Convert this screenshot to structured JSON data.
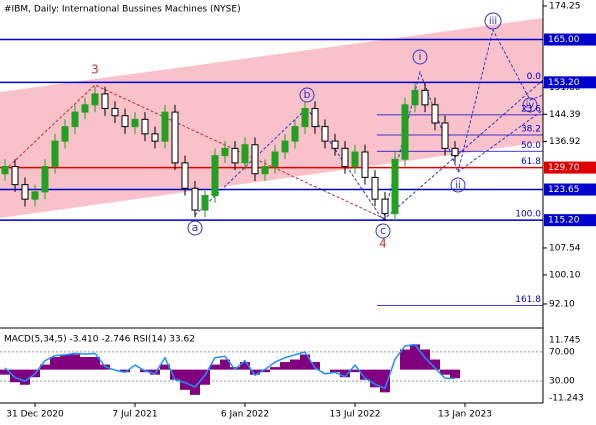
{
  "chart_data": {
    "type": "candlestick",
    "title": "#IBM, Daily:  International Bussines Machines (NYSE)",
    "categories": [
      null,
      null,
      null,
      "31 Dec 2020",
      null,
      null,
      null,
      null,
      null,
      null,
      null,
      null,
      null,
      "7 Jul 2021",
      null,
      null,
      null,
      null,
      null,
      null,
      null,
      null,
      null,
      null,
      "6 Jan 2022",
      null,
      null,
      null,
      null,
      null,
      null,
      null,
      null,
      null,
      null,
      "13 Jul 2022",
      null,
      null,
      null,
      null,
      null,
      null,
      null,
      null,
      null,
      null,
      "13 Jan 2023",
      null,
      null,
      null,
      null,
      null,
      null,
      null
    ],
    "open": [
      128,
      130,
      125,
      121,
      123,
      130,
      137,
      141,
      145,
      147,
      150,
      146,
      144,
      141,
      143,
      139,
      137,
      145,
      131,
      124,
      118,
      122,
      133,
      135,
      131,
      136,
      128,
      130,
      134,
      137,
      141,
      146,
      141,
      137,
      135,
      130,
      134,
      127,
      121,
      117,
      132,
      147,
      151,
      147,
      142,
      135,
      null,
      null,
      null,
      null,
      null,
      null,
      null,
      null
    ],
    "high": [
      132,
      132,
      127,
      125,
      132,
      139,
      143,
      147,
      149,
      152,
      152,
      148,
      146,
      145,
      145,
      141,
      147,
      147,
      133,
      126,
      124,
      135,
      137,
      137,
      138,
      138,
      132,
      136,
      139,
      143,
      148,
      148,
      143,
      139,
      137,
      136,
      136,
      129,
      123,
      134,
      149,
      153,
      153,
      149,
      144,
      137,
      null,
      null,
      null,
      null,
      null,
      null,
      null,
      null
    ],
    "low": [
      126,
      123,
      119,
      119,
      121,
      128,
      135,
      139,
      143,
      145,
      144,
      142,
      139,
      139,
      137,
      135,
      135,
      129,
      122,
      116,
      116,
      120,
      131,
      129,
      129,
      126,
      126,
      128,
      132,
      135,
      139,
      139,
      135,
      133,
      128,
      128,
      125,
      119,
      115,
      115,
      130,
      145,
      145,
      140,
      133,
      131,
      null,
      null,
      null,
      null,
      null,
      null,
      null,
      null
    ],
    "close": [
      130,
      125,
      121,
      123,
      130,
      137,
      141,
      145,
      147,
      150,
      146,
      144,
      141,
      143,
      139,
      137,
      145,
      131,
      124,
      118,
      122,
      133,
      135,
      131,
      136,
      128,
      130,
      134,
      137,
      141,
      146,
      141,
      137,
      135,
      130,
      134,
      127,
      121,
      117,
      132,
      147,
      151,
      147,
      142,
      135,
      133,
      null,
      null,
      null,
      null,
      null,
      null,
      null,
      null
    ],
    "up_color": "#22a022",
    "down_color": "#000000",
    "ylim": [
      86.03,
      175.9
    ],
    "yticks": [
      174.25,
      {
        "value": 151.8,
        "label": "151.80"
      },
      144.39,
      136.92,
      107.54,
      {
        "value": 100.1,
        "label": "100.10"
      },
      {
        "value": 92.1,
        "label": "92.10"
      }
    ],
    "levels": [
      {
        "value": 165,
        "label": "165.00",
        "color": "#0000cc"
      },
      {
        "value": 153.2,
        "label": "153.20",
        "color": "#0000cc"
      },
      {
        "value": 129.7,
        "label": "129.70",
        "color": "#dd0000"
      },
      {
        "value": 123.65,
        "label": "123.65",
        "color": "#0000cc"
      },
      {
        "value": 115.2,
        "label": "115.20",
        "color": "#0000cc"
      }
    ],
    "fib_levels": [
      {
        "value": 153.2,
        "label": "0.0"
      },
      {
        "value": 144.23,
        "label": "23.6"
      },
      {
        "value": 138.68,
        "label": "38.2"
      },
      {
        "value": 134.2,
        "label": "50.0"
      },
      {
        "value": 129.72,
        "label": "61.8"
      },
      {
        "value": 115.2,
        "label": "100.0"
      },
      {
        "value": 91.72,
        "label": "161.8"
      }
    ],
    "annotations": [
      "3",
      "a",
      "b",
      "4",
      "c",
      "i",
      "ii",
      "iii",
      "iv"
    ],
    "indicator": {
      "label": "MACD(5,34,5) -3.410 -2.746 RSI(14) 33.62",
      "macd_color": "#800080",
      "rsi_color": "#1e90ff",
      "macd": [
        -2,
        -5,
        -6,
        -3,
        2,
        5,
        6,
        6,
        5,
        5,
        2,
        0,
        -1,
        0,
        -1,
        -2,
        2,
        -4,
        -8,
        -10,
        -6,
        2,
        4,
        1,
        3,
        -2,
        -1,
        1,
        3,
        4,
        6,
        3,
        0,
        -1,
        -3,
        -1,
        -4,
        -7,
        -9,
        0,
        8,
        10,
        8,
        4,
        -2,
        -3.41,
        null,
        null,
        null,
        null,
        null,
        null,
        null,
        null
      ],
      "rsi": [
        48,
        35,
        30,
        40,
        58,
        65,
        66,
        68,
        67,
        68,
        50,
        45,
        42,
        52,
        44,
        40,
        62,
        32,
        28,
        22,
        38,
        62,
        64,
        46,
        58,
        38,
        46,
        56,
        62,
        66,
        70,
        48,
        40,
        42,
        36,
        52,
        34,
        26,
        20,
        60,
        78,
        80,
        62,
        48,
        34,
        33.62,
        null,
        null,
        null,
        null,
        null,
        null,
        null,
        null
      ],
      "macd_lim": [
        -11.243,
        11.745
      ],
      "macd_ticks": [
        11.745,
        -11.243
      ],
      "rsi_lim": [
        0,
        100
      ],
      "rsi_ticks": [
        {
          "value": 70,
          "label": "70.00"
        },
        {
          "value": 30,
          "label": "30.00"
        }
      ]
    }
  }
}
